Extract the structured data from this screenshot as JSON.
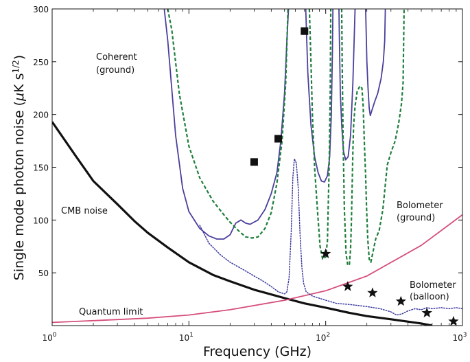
{
  "chart_data": {
    "type": "line",
    "xlabel": "Frequency (GHz)",
    "ylabel_parts": {
      "main": "Single mode photon noise (",
      "mu": "μ",
      "unit": "K s",
      "exp": "1/2",
      "close": ")"
    },
    "x_scale": "log",
    "xlim": [
      1,
      1000
    ],
    "ylim": [
      0,
      300
    ],
    "x_ticks": [
      {
        "value": 1,
        "base": "10",
        "exp": "0"
      },
      {
        "value": 10,
        "base": "10",
        "exp": "1"
      },
      {
        "value": 100,
        "base": "10",
        "exp": "2"
      },
      {
        "value": 1000,
        "base": "10",
        "exp": "3"
      }
    ],
    "y_ticks": [
      50,
      100,
      150,
      200,
      250,
      300
    ],
    "grid": false,
    "series": [
      {
        "key": "cmb",
        "style": "solid-thick",
        "color": "#111111",
        "points": [
          [
            1,
            193
          ],
          [
            1.5,
            160
          ],
          [
            2,
            137
          ],
          [
            3,
            115
          ],
          [
            4,
            99
          ],
          [
            5,
            88
          ],
          [
            7,
            74
          ],
          [
            10,
            60
          ],
          [
            15,
            48
          ],
          [
            20,
            42
          ],
          [
            30,
            34
          ],
          [
            50,
            26
          ],
          [
            70,
            21
          ],
          [
            100,
            17
          ],
          [
            150,
            12
          ],
          [
            200,
            9
          ],
          [
            300,
            6
          ],
          [
            500,
            2
          ],
          [
            600,
            0
          ]
        ]
      },
      {
        "key": "quantum",
        "style": "solid",
        "color": "#d64e79",
        "points": [
          [
            1,
            3
          ],
          [
            2,
            4.7
          ],
          [
            5,
            7
          ],
          [
            10,
            10
          ],
          [
            20,
            15
          ],
          [
            50,
            24
          ],
          [
            100,
            33
          ],
          [
            200,
            47
          ],
          [
            500,
            76
          ],
          [
            1000,
            105
          ]
        ]
      },
      {
        "key": "coherent",
        "style": "solid",
        "color": "#4a3f9c",
        "points": [
          [
            6.6,
            300
          ],
          [
            7,
            270
          ],
          [
            8,
            180
          ],
          [
            9,
            130
          ],
          [
            10,
            108
          ],
          [
            12,
            92
          ],
          [
            14,
            85
          ],
          [
            16,
            82
          ],
          [
            18,
            82
          ],
          [
            20,
            86
          ],
          [
            22,
            97
          ],
          [
            24,
            100
          ],
          [
            26,
            97
          ],
          [
            28,
            96
          ],
          [
            32,
            100
          ],
          [
            36,
            110
          ],
          [
            40,
            125
          ],
          [
            44,
            145
          ],
          [
            47,
            175
          ],
          [
            50,
            220
          ],
          [
            52,
            270
          ],
          [
            53.5,
            300
          ],
          [
            null,
            null
          ],
          [
            71.5,
            300
          ],
          [
            74,
            240
          ],
          [
            78,
            190
          ],
          [
            83,
            160
          ],
          [
            88,
            145
          ],
          [
            93,
            137
          ],
          [
            98,
            136
          ],
          [
            103,
            142
          ],
          [
            107,
            160
          ],
          [
            110,
            200
          ],
          [
            112,
            260
          ],
          [
            113,
            300
          ],
          [
            null,
            null
          ],
          [
            125,
            300
          ],
          [
            126,
            270
          ],
          [
            128,
            220
          ],
          [
            131,
            190
          ],
          [
            135,
            165
          ],
          [
            140,
            157
          ],
          [
            146,
            160
          ],
          [
            152,
            180
          ],
          [
            158,
            230
          ],
          [
            164,
            300
          ],
          [
            null,
            null
          ],
          [
            196,
            300
          ],
          [
            200,
            250
          ],
          [
            204,
            225
          ],
          [
            208,
            206
          ],
          [
            212,
            199
          ],
          [
            218,
            204
          ],
          [
            228,
            212
          ],
          [
            240,
            220
          ],
          [
            254,
            234
          ],
          [
            264,
            250
          ],
          [
            270,
            270
          ],
          [
            273,
            300
          ]
        ]
      },
      {
        "key": "bolo_ground",
        "style": "dashed",
        "color": "#1e7f3c",
        "points": [
          [
            7,
            300
          ],
          [
            7.5,
            280
          ],
          [
            8.5,
            220
          ],
          [
            10,
            170
          ],
          [
            12,
            140
          ],
          [
            15,
            118
          ],
          [
            18,
            105
          ],
          [
            20,
            98
          ],
          [
            23,
            90
          ],
          [
            26,
            84
          ],
          [
            29,
            83
          ],
          [
            32,
            84
          ],
          [
            36,
            92
          ],
          [
            40,
            107
          ],
          [
            44,
            135
          ],
          [
            48,
            175
          ],
          [
            51,
            230
          ],
          [
            53,
            300
          ],
          [
            null,
            null
          ],
          [
            76,
            300
          ],
          [
            78,
            250
          ],
          [
            80,
            200
          ],
          [
            83,
            150
          ],
          [
            87,
            110
          ],
          [
            91,
            75
          ],
          [
            95,
            63
          ],
          [
            100,
            65
          ],
          [
            103,
            80
          ],
          [
            106,
            150
          ],
          [
            108,
            220
          ],
          [
            109,
            300
          ],
          [
            null,
            null
          ],
          [
            131,
            300
          ],
          [
            132,
            250
          ],
          [
            134,
            180
          ],
          [
            137,
            110
          ],
          [
            141,
            68
          ],
          [
            145,
            57
          ],
          [
            149,
            58
          ],
          [
            152,
            72
          ],
          [
            154,
            95
          ],
          [
            156,
            130
          ],
          [
            158,
            165
          ],
          [
            160,
            190
          ],
          [
            164,
            208
          ],
          [
            170,
            222
          ],
          [
            178,
            227
          ],
          [
            184,
            225
          ],
          [
            188,
            208
          ],
          [
            192,
            172
          ],
          [
            196,
            142
          ],
          [
            199,
            112
          ],
          [
            203,
            82
          ],
          [
            208,
            63
          ],
          [
            214,
            60
          ],
          [
            222,
            70
          ],
          [
            232,
            82
          ],
          [
            246,
            90
          ],
          [
            262,
            110
          ],
          [
            282,
            152
          ],
          [
            300,
            164
          ],
          [
            322,
            175
          ],
          [
            342,
            192
          ],
          [
            358,
            210
          ],
          [
            368,
            230
          ],
          [
            374,
            300
          ]
        ]
      },
      {
        "key": "bolo_balloon",
        "style": "dotted",
        "color": "#3a3aa0",
        "points": [
          [
            12,
            95
          ],
          [
            14,
            78
          ],
          [
            17,
            67
          ],
          [
            20,
            60
          ],
          [
            25,
            53
          ],
          [
            30,
            47
          ],
          [
            35,
            42
          ],
          [
            40,
            37
          ],
          [
            45,
            32
          ],
          [
            50,
            30
          ],
          [
            52,
            32
          ],
          [
            54,
            45
          ],
          [
            56,
            90
          ],
          [
            57.5,
            140
          ],
          [
            59,
            158
          ],
          [
            61,
            154
          ],
          [
            63,
            130
          ],
          [
            65,
            85
          ],
          [
            67,
            55
          ],
          [
            69,
            40
          ],
          [
            72,
            32
          ],
          [
            80,
            28
          ],
          [
            100,
            24
          ],
          [
            120,
            21
          ],
          [
            150,
            20
          ],
          [
            200,
            18
          ],
          [
            250,
            16
          ],
          [
            300,
            13
          ],
          [
            330,
            10
          ],
          [
            360,
            11
          ],
          [
            400,
            14
          ],
          [
            450,
            16
          ],
          [
            500,
            15
          ],
          [
            550,
            17
          ],
          [
            600,
            16
          ],
          [
            700,
            17
          ],
          [
            800,
            16
          ],
          [
            900,
            17
          ],
          [
            1000,
            16
          ]
        ]
      }
    ],
    "markers": {
      "squares": [
        [
          30,
          155
        ],
        [
          45,
          177
        ],
        [
          70,
          279
        ]
      ],
      "stars": [
        [
          100,
          68
        ],
        [
          145,
          37
        ],
        [
          220,
          31
        ],
        [
          355,
          23
        ],
        [
          550,
          12
        ],
        [
          860,
          4
        ]
      ]
    },
    "labels": {
      "coherent_1": "Coherent",
      "coherent_2": "(ground)",
      "cmb": "CMB noise",
      "bolo_ground_1": "Bolometer",
      "bolo_ground_2": "(ground)",
      "bolo_balloon_1": "Bolometer",
      "bolo_balloon_2": "(balloon)",
      "quantum": "Quantum limit"
    }
  }
}
